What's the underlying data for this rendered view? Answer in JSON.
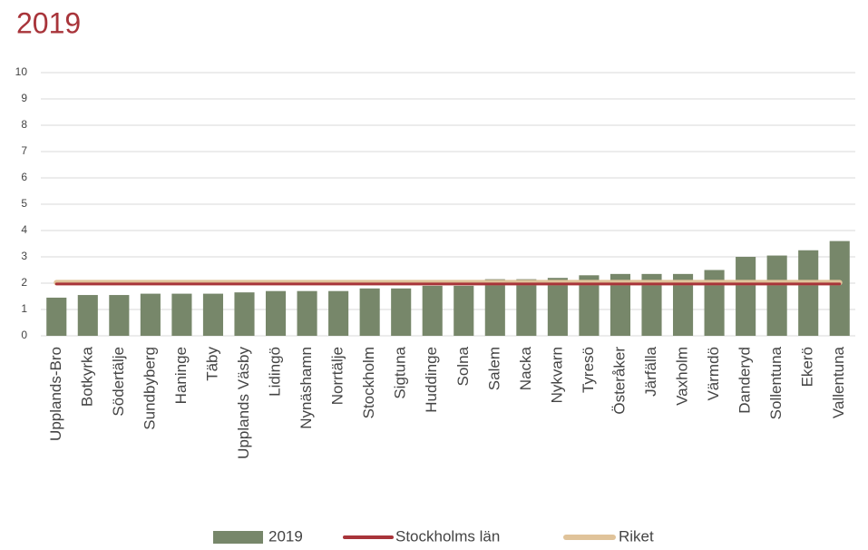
{
  "chart_data": {
    "type": "bar",
    "title": "2019",
    "categories": [
      "Upplands-Bro",
      "Botkyrka",
      "Södertälje",
      "Sundbyberg",
      "Haninge",
      "Täby",
      "Upplands Väsby",
      "Lidingö",
      "Nynäshamn",
      "Norrtälje",
      "Stockholm",
      "Sigtuna",
      "Huddinge",
      "Solna",
      "Salem",
      "Nacka",
      "Nykvarn",
      "Tyresö",
      "Österåker",
      "Järfälla",
      "Vaxholm",
      "Värmdö",
      "Danderyd",
      "Sollentuna",
      "Ekerö",
      "Vallentuna"
    ],
    "series": [
      {
        "name": "2019",
        "color": "#77876a",
        "values": [
          1.45,
          1.55,
          1.55,
          1.6,
          1.6,
          1.6,
          1.65,
          1.7,
          1.7,
          1.7,
          1.8,
          1.8,
          1.9,
          1.9,
          2.15,
          2.15,
          2.2,
          2.3,
          2.35,
          2.35,
          2.35,
          2.5,
          3.0,
          3.05,
          3.25,
          3.6
        ]
      }
    ],
    "reference_lines": [
      {
        "name": "Stockholms län",
        "color": "#a8343a",
        "value": 1.97
      },
      {
        "name": "Riket",
        "color": "#e0c39a",
        "value": 2.02
      }
    ],
    "ylim": [
      0,
      10
    ],
    "yticks": [
      0,
      1,
      2,
      3,
      4,
      5,
      6,
      7,
      8,
      9,
      10
    ],
    "grid": true,
    "legend": "bottom"
  }
}
